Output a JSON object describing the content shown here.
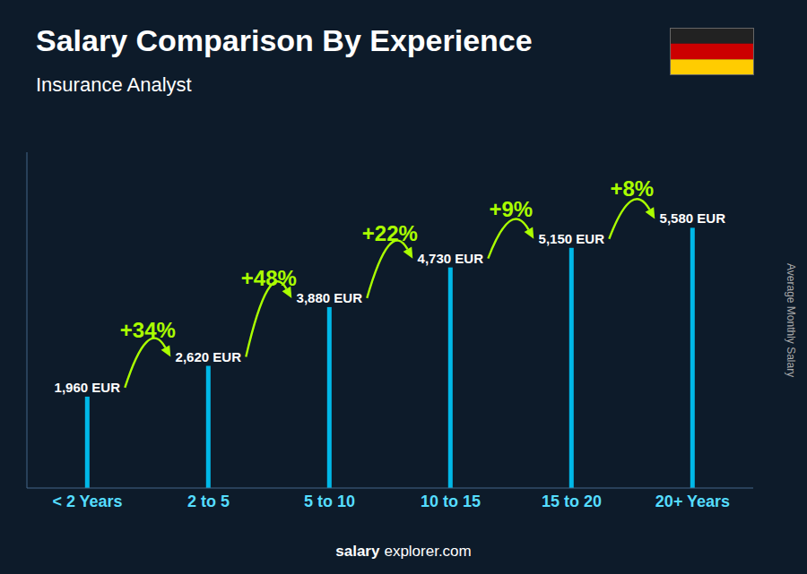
{
  "chart_data": {
    "type": "bar",
    "title": "Salary Comparison By Experience",
    "subtitle": "Insurance Analyst",
    "categories": [
      "< 2 Years",
      "2 to 5",
      "5 to 10",
      "10 to 15",
      "15 to 20",
      "20+ Years"
    ],
    "values": [
      1960,
      2620,
      3880,
      4730,
      5150,
      5580
    ],
    "value_labels": [
      "1,960 EUR",
      "2,620 EUR",
      "3,880 EUR",
      "4,730 EUR",
      "5,150 EUR",
      "5,580 EUR"
    ],
    "data_labels": true,
    "annotations": [
      "+34%",
      "+48%",
      "+22%",
      "+9%",
      "+8%"
    ],
    "ylabel": "Average Monthly Salary",
    "footer": [
      "salary",
      "explorer.com"
    ],
    "color": "#00b8e8",
    "ylim": [
      0,
      7200
    ],
    "tick_labels": "x",
    "grid": false
  }
}
